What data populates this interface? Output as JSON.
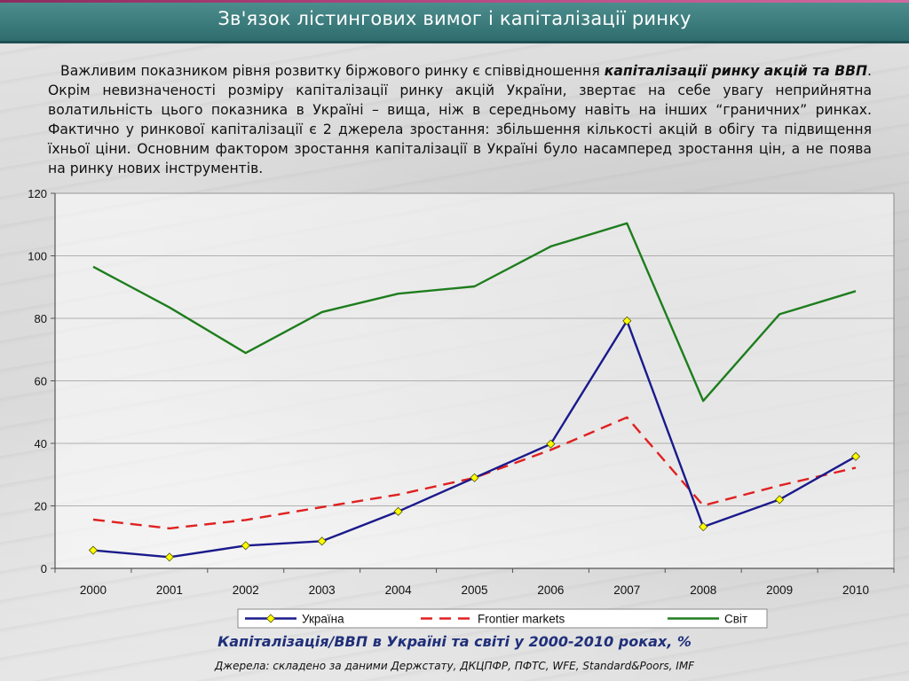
{
  "slide": {
    "title": "Зв'язок лістингових вимог і капіталізації ринку",
    "paragraph": {
      "part1": "Важливим показником рівня розвитку біржового ринку є співвідношення ",
      "emphasis": "капіталізації ринку акцій та ВВП",
      "part2": ". Окрім невизначеності розміру капіталізації ринку акцій України, звертає на себе увагу неприйнятна волатильність цього показника в Україні – вища, ніж в середньому навіть на інших “граничних” ринках. Фактично у ринкової капіталізації є 2 джерела зростання: збільшення кількості акцій в обігу та підвищення їхньої ціни. Основним фактором зростання капіталізації в Україні було насамперед зростання цін, а не поява на ринку нових інструментів."
    },
    "caption_main": "Капіталізація/ВВП в Україні та світі у 2000-2010 роках",
    "caption_unit": ", %",
    "source": "Джерела: складено за даними Держстату, ДКЦПФР, ПФТС, WFE, Standard&Poors, IMF"
  },
  "chart_data": {
    "type": "line",
    "title": "",
    "xlabel": "",
    "ylabel": "",
    "x": [
      "2000",
      "2001",
      "2002",
      "2003",
      "2004",
      "2005",
      "2006",
      "2007",
      "2008",
      "2009",
      "2010"
    ],
    "ylim": [
      0,
      120
    ],
    "yticks": [
      0,
      20,
      40,
      60,
      80,
      100,
      120
    ],
    "grid": true,
    "legend_position": "bottom",
    "series": [
      {
        "name": "Україна",
        "color": "#1a1a8c",
        "style": "solid",
        "marker": "diamond",
        "marker_color": "#ffff00",
        "values": [
          5.8,
          3.6,
          7.3,
          8.7,
          18.2,
          29.0,
          39.8,
          79.2,
          13.3,
          22.0,
          35.8
        ]
      },
      {
        "name": "Frontier markets",
        "color": "#e02020",
        "style": "dashed",
        "marker": "none",
        "marker_color": "",
        "values": [
          15.6,
          12.8,
          15.5,
          19.6,
          23.6,
          29.0,
          37.9,
          48.3,
          20.1,
          26.5,
          32.2
        ]
      },
      {
        "name": "Світ",
        "color": "#1e7d1e",
        "style": "solid",
        "marker": "none",
        "marker_color": "",
        "values": [
          96.5,
          83.5,
          68.9,
          82.0,
          87.9,
          90.2,
          103.0,
          110.4,
          53.6,
          81.3,
          88.7
        ]
      }
    ]
  }
}
